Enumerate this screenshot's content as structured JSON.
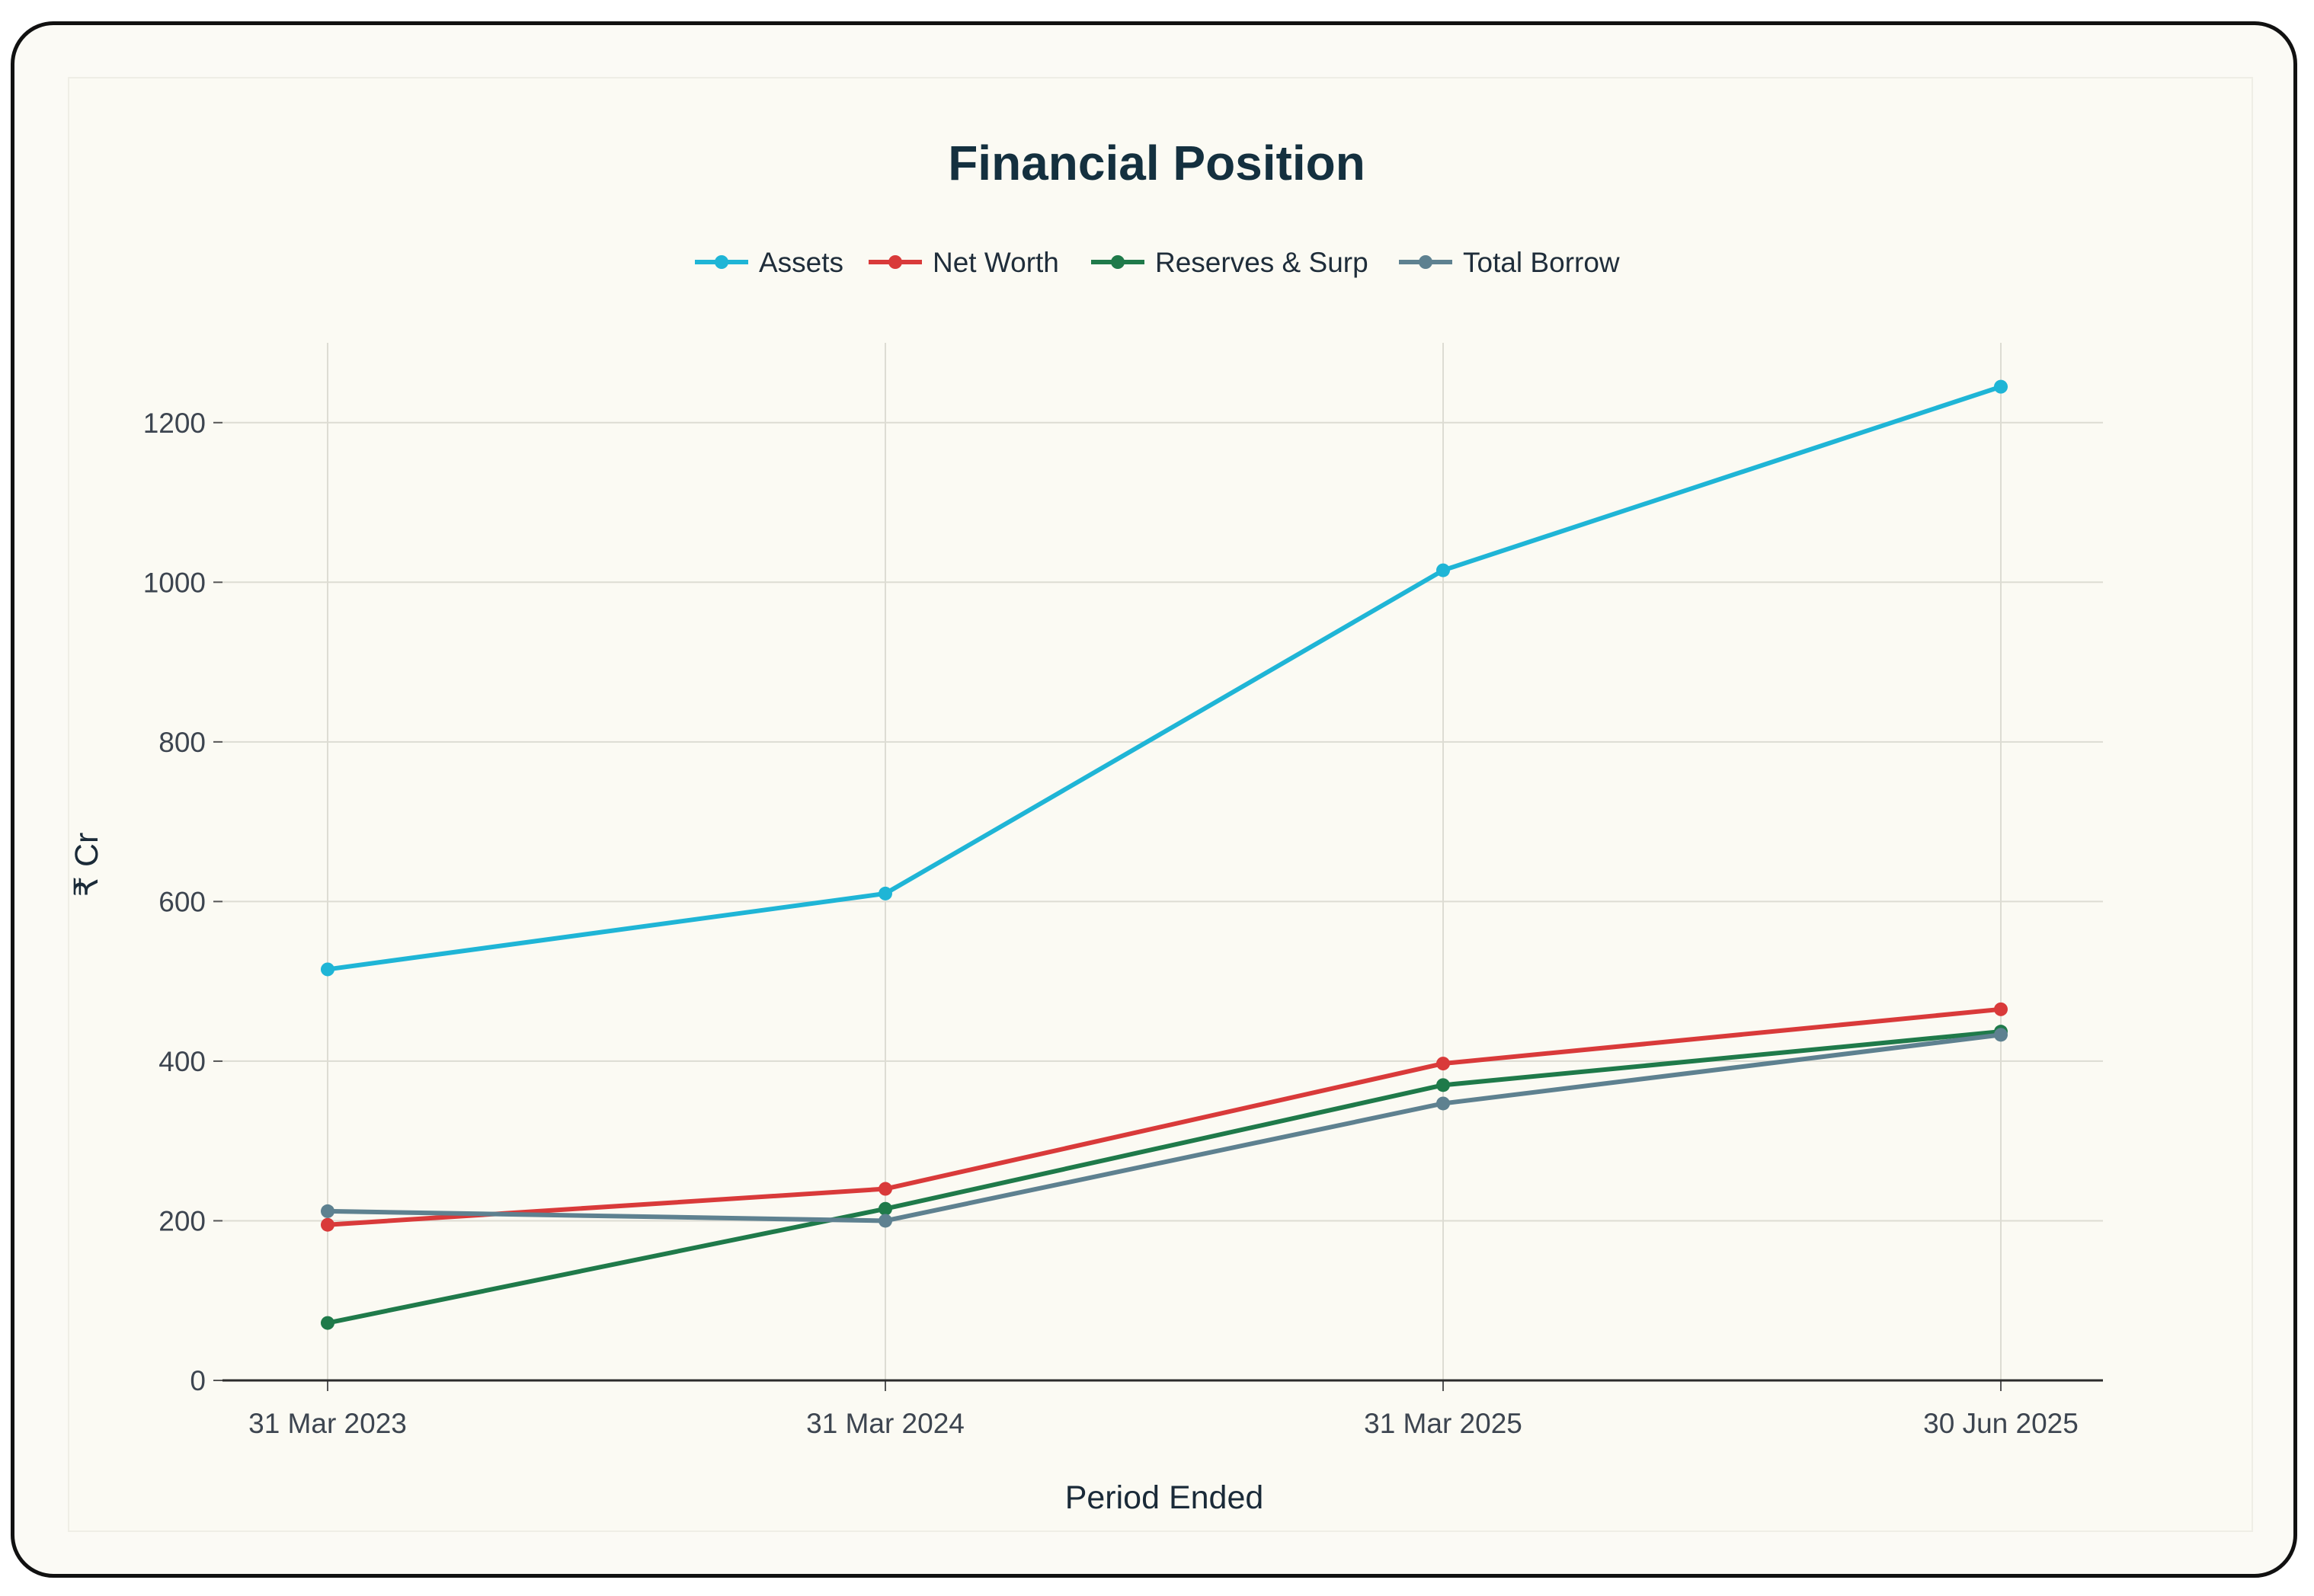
{
  "chart_data": {
    "type": "line",
    "title": "Financial Position",
    "xlabel": "Period Ended",
    "ylabel": "₹ Cr",
    "categories": [
      "31 Mar 2023",
      "31 Mar 2024",
      "31 Mar 2025",
      "30 Jun 2025"
    ],
    "ylim": [
      0,
      1300
    ],
    "yticks": [
      0,
      200,
      400,
      600,
      800,
      1000,
      1200
    ],
    "grid": true,
    "legend_position": "top-center",
    "series": [
      {
        "name": "Assets",
        "color": "#1fb5d6",
        "values": [
          515,
          610,
          1015,
          1245
        ]
      },
      {
        "name": "Net Worth",
        "color": "#d93a3a",
        "values": [
          195,
          240,
          397,
          465
        ]
      },
      {
        "name": "Reserves & Surp",
        "color": "#1f7a4a",
        "values": [
          72,
          215,
          370,
          437
        ]
      },
      {
        "name": "Total Borrow",
        "color": "#5e8190",
        "values": [
          212,
          200,
          347,
          433
        ]
      }
    ]
  }
}
